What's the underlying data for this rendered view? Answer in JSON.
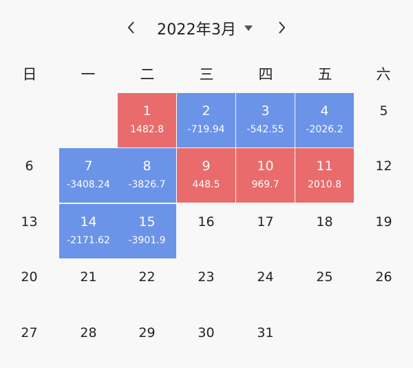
{
  "header": {
    "month_title": "2022年3月",
    "prev_icon": "chevron-left-icon",
    "next_icon": "chevron-right-icon",
    "dropdown_icon": "caret-down-icon"
  },
  "weekdays": [
    "日",
    "一",
    "二",
    "三",
    "四",
    "五",
    "六"
  ],
  "colors": {
    "positive": "#ea6b6b",
    "negative": "#6b93e8",
    "background": "#f8f8f8"
  },
  "days": [
    {
      "day": "1",
      "amount": "1482.8",
      "status": "pos"
    },
    {
      "day": "2",
      "amount": "-719.94",
      "status": "neg"
    },
    {
      "day": "3",
      "amount": "-542.55",
      "status": "neg"
    },
    {
      "day": "4",
      "amount": "-2026.2",
      "status": "neg"
    },
    {
      "day": "5",
      "amount": "",
      "status": "none"
    },
    {
      "day": "6",
      "amount": "",
      "status": "none"
    },
    {
      "day": "7",
      "amount": "-3408.24",
      "status": "neg"
    },
    {
      "day": "8",
      "amount": "-3826.7",
      "status": "neg"
    },
    {
      "day": "9",
      "amount": "448.5",
      "status": "pos"
    },
    {
      "day": "10",
      "amount": "969.7",
      "status": "pos"
    },
    {
      "day": "11",
      "amount": "2010.8",
      "status": "pos"
    },
    {
      "day": "12",
      "amount": "",
      "status": "none"
    },
    {
      "day": "13",
      "amount": "",
      "status": "none"
    },
    {
      "day": "14",
      "amount": "-2171.62",
      "status": "neg"
    },
    {
      "day": "15",
      "amount": "-3901.9",
      "status": "neg"
    },
    {
      "day": "16",
      "amount": "",
      "status": "none"
    },
    {
      "day": "17",
      "amount": "",
      "status": "none"
    },
    {
      "day": "18",
      "amount": "",
      "status": "none"
    },
    {
      "day": "19",
      "amount": "",
      "status": "none"
    },
    {
      "day": "20",
      "amount": "",
      "status": "none"
    },
    {
      "day": "21",
      "amount": "",
      "status": "none"
    },
    {
      "day": "22",
      "amount": "",
      "status": "none"
    },
    {
      "day": "23",
      "amount": "",
      "status": "none"
    },
    {
      "day": "24",
      "amount": "",
      "status": "none"
    },
    {
      "day": "25",
      "amount": "",
      "status": "none"
    },
    {
      "day": "26",
      "amount": "",
      "status": "none"
    },
    {
      "day": "27",
      "amount": "",
      "status": "none"
    },
    {
      "day": "28",
      "amount": "",
      "status": "none"
    },
    {
      "day": "29",
      "amount": "",
      "status": "none"
    },
    {
      "day": "30",
      "amount": "",
      "status": "none"
    },
    {
      "day": "31",
      "amount": "",
      "status": "none"
    }
  ]
}
